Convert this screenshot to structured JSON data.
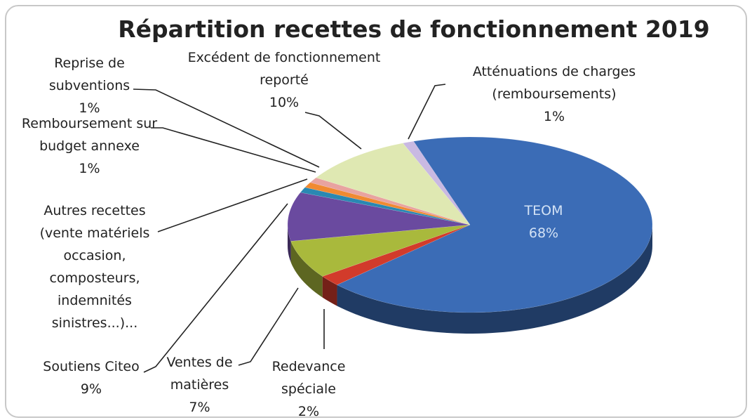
{
  "chart_data": {
    "type": "pie",
    "title": "Répartition recettes de fonctionnement 2019",
    "categories": [
      "Atténuations de charges (remboursements)",
      "TEOM",
      "Redevance spéciale",
      "Ventes de matières",
      "Soutiens Citeo",
      "Autres recettes (vente matériels occasion, composteurs, indemnités sinistres...)...",
      "Remboursement sur budget annexe",
      "Reprise de subventions",
      "Excédent de fonctionnement reporté"
    ],
    "values": [
      1,
      68,
      2,
      7,
      9,
      1,
      1,
      1,
      10
    ],
    "value_labels": [
      "1%",
      "68%",
      "2%",
      "7%",
      "9%",
      null,
      "1%",
      "1%",
      "10%"
    ],
    "colors": [
      "#c9b9e2",
      "#3b6cb6",
      "#d23b2b",
      "#a9b93c",
      "#6a4a9f",
      "#2a88b2",
      "#f08a32",
      "#e8a3a0",
      "#dfe8b2"
    ]
  }
}
